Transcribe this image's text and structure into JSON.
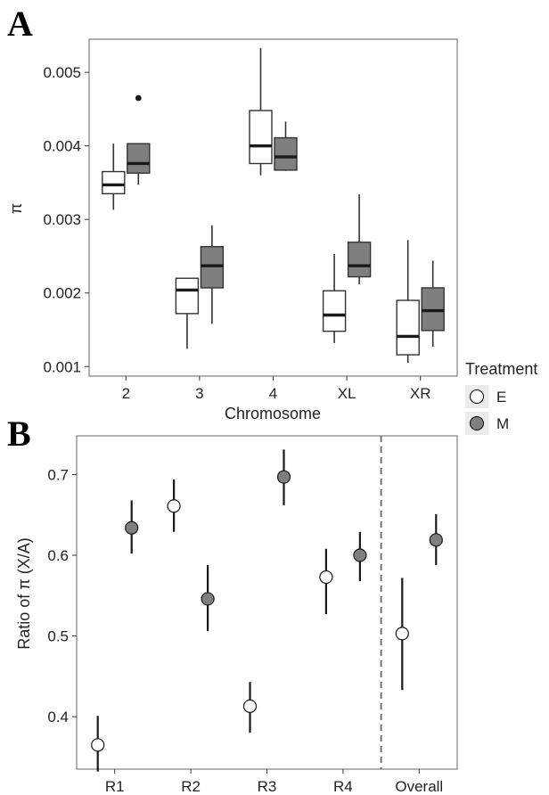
{
  "chart_data": [
    {
      "panel": "A",
      "type": "box",
      "xlabel": "Chromosome",
      "ylabel": "π",
      "ylim": [
        0.00087,
        0.00545
      ],
      "yticks": [
        "0.001",
        "0.002",
        "0.003",
        "0.004",
        "0.005"
      ],
      "categories": [
        "2",
        "3",
        "4",
        "XL",
        "XR"
      ],
      "legend": {
        "title": "Treatment",
        "placement": "right",
        "entries": [
          {
            "label": "E",
            "color": "#ffffff"
          },
          {
            "label": "M",
            "color": "#7f7f7f"
          }
        ]
      },
      "series": [
        {
          "name": "E",
          "color": "#ffffff",
          "boxes": [
            {
              "min": 0.00313,
              "q1": 0.00335,
              "median": 0.00347,
              "q3": 0.00365,
              "max": 0.00403,
              "outliers": []
            },
            {
              "min": 0.00124,
              "q1": 0.00172,
              "median": 0.00204,
              "q3": 0.0022,
              "max": 0.0022,
              "outliers": []
            },
            {
              "min": 0.0036,
              "q1": 0.00376,
              "median": 0.004,
              "q3": 0.00448,
              "max": 0.00533,
              "outliers": []
            },
            {
              "min": 0.00132,
              "q1": 0.00148,
              "median": 0.0017,
              "q3": 0.00203,
              "max": 0.00253,
              "outliers": []
            },
            {
              "min": 0.00105,
              "q1": 0.00116,
              "median": 0.00141,
              "q3": 0.0019,
              "max": 0.00272,
              "outliers": []
            }
          ]
        },
        {
          "name": "M",
          "color": "#7f7f7f",
          "boxes": [
            {
              "min": 0.00347,
              "q1": 0.00363,
              "median": 0.00376,
              "q3": 0.00403,
              "max": 0.00403,
              "outliers": [
                0.00465
              ]
            },
            {
              "min": 0.00158,
              "q1": 0.00207,
              "median": 0.00237,
              "q3": 0.00263,
              "max": 0.00292,
              "outliers": []
            },
            {
              "min": 0.00366,
              "q1": 0.00367,
              "median": 0.00385,
              "q3": 0.00411,
              "max": 0.00433,
              "outliers": []
            },
            {
              "min": 0.00212,
              "q1": 0.00222,
              "median": 0.00237,
              "q3": 0.00269,
              "max": 0.00334,
              "outliers": []
            },
            {
              "min": 0.00127,
              "q1": 0.00149,
              "median": 0.00176,
              "q3": 0.00207,
              "max": 0.00244,
              "outliers": []
            }
          ]
        }
      ]
    },
    {
      "panel": "B",
      "type": "scatter",
      "xlabel": "",
      "ylabel": "Ratio of π (X/A)",
      "ylim": [
        0.335,
        0.748
      ],
      "yticks": [
        "0.4",
        "0.5",
        "0.6",
        "0.7"
      ],
      "categories": [
        "R1",
        "R2",
        "R3",
        "R4",
        "Overall"
      ],
      "separator_after": "R4",
      "series": [
        {
          "name": "E",
          "color": "#ffffff",
          "points": [
            {
              "value": 0.365,
              "lower": 0.332,
              "upper": 0.401
            },
            {
              "value": 0.661,
              "lower": 0.629,
              "upper": 0.694
            },
            {
              "value": 0.413,
              "lower": 0.38,
              "upper": 0.443
            },
            {
              "value": 0.573,
              "lower": 0.527,
              "upper": 0.608
            },
            {
              "value": 0.503,
              "lower": 0.433,
              "upper": 0.572
            }
          ]
        },
        {
          "name": "M",
          "color": "#7f7f7f",
          "points": [
            {
              "value": 0.634,
              "lower": 0.602,
              "upper": 0.668
            },
            {
              "value": 0.546,
              "lower": 0.506,
              "upper": 0.588
            },
            {
              "value": 0.697,
              "lower": 0.662,
              "upper": 0.731
            },
            {
              "value": 0.6,
              "lower": 0.568,
              "upper": 0.629
            },
            {
              "value": 0.619,
              "lower": 0.588,
              "upper": 0.651
            }
          ]
        }
      ]
    }
  ]
}
